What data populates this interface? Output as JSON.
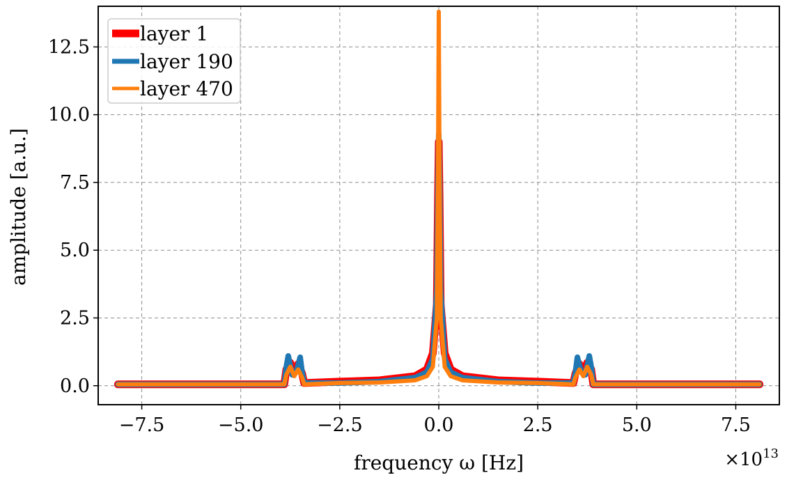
{
  "chart_data": {
    "type": "line",
    "title": "",
    "xlabel": "frequency ω [Hz]",
    "ylabel": "amplitude [a.u.]",
    "x_offset_label": "×10",
    "x_offset_exponent": "13",
    "xlim": [
      -8.6,
      8.6
    ],
    "ylim": [
      -0.7,
      14.0
    ],
    "x_scale_note": "x values in units of 1e13 Hz",
    "xticks": [
      -7.5,
      -5.0,
      -2.5,
      0.0,
      2.5,
      5.0,
      7.5
    ],
    "xtick_labels": [
      "−7.5",
      "−5.0",
      "−2.5",
      "0.0",
      "2.5",
      "5.0",
      "7.5"
    ],
    "yticks": [
      0.0,
      2.5,
      5.0,
      7.5,
      10.0,
      12.5
    ],
    "ytick_labels": [
      "0.0",
      "2.5",
      "5.0",
      "7.5",
      "10.0",
      "12.5"
    ],
    "grid": true,
    "legend_position": "top-left",
    "series": [
      {
        "name": "layer 1",
        "color": "#ff0000",
        "x": [
          -8.1,
          -3.9,
          -3.85,
          -3.75,
          -3.65,
          -3.55,
          -3.45,
          -3.4,
          -2.5,
          -1.5,
          -0.6,
          -0.3,
          -0.15,
          -0.05,
          -0.02,
          0.0,
          0.02,
          0.05,
          0.15,
          0.3,
          0.6,
          1.5,
          2.5,
          3.4,
          3.45,
          3.55,
          3.65,
          3.75,
          3.85,
          3.9,
          8.1
        ],
        "y": [
          0.05,
          0.05,
          0.6,
          0.85,
          0.5,
          0.8,
          0.45,
          0.1,
          0.15,
          0.2,
          0.35,
          0.6,
          1.2,
          3.0,
          7.0,
          9.0,
          7.0,
          3.0,
          1.2,
          0.6,
          0.35,
          0.2,
          0.15,
          0.1,
          0.45,
          0.8,
          0.5,
          0.85,
          0.6,
          0.05,
          0.05
        ]
      },
      {
        "name": "layer 190",
        "color": "#1f77b4",
        "x": [
          -8.1,
          -3.9,
          -3.85,
          -3.8,
          -3.7,
          -3.6,
          -3.5,
          -3.45,
          -3.4,
          -2.5,
          -1.5,
          -0.6,
          -0.3,
          -0.15,
          -0.05,
          -0.02,
          0.0,
          0.02,
          0.05,
          0.15,
          0.3,
          0.6,
          1.5,
          2.5,
          3.4,
          3.45,
          3.5,
          3.6,
          3.7,
          3.8,
          3.85,
          3.9,
          8.1
        ],
        "y": [
          0.05,
          0.05,
          0.7,
          1.1,
          0.4,
          0.5,
          1.05,
          0.5,
          0.1,
          0.1,
          0.15,
          0.3,
          0.5,
          1.0,
          3.5,
          7.5,
          9.3,
          7.5,
          3.5,
          1.0,
          0.5,
          0.3,
          0.15,
          0.1,
          0.1,
          0.5,
          1.05,
          0.5,
          0.4,
          1.1,
          0.7,
          0.05,
          0.05
        ]
      },
      {
        "name": "layer 470",
        "color": "#ff7f0e",
        "x": [
          -8.1,
          -3.9,
          -3.85,
          -3.75,
          -3.65,
          -3.55,
          -3.45,
          -3.4,
          -2.5,
          -1.5,
          -0.6,
          -0.3,
          -0.15,
          -0.05,
          -0.02,
          0.0,
          0.02,
          0.05,
          0.15,
          0.3,
          0.6,
          1.5,
          2.5,
          3.4,
          3.45,
          3.55,
          3.65,
          3.75,
          3.85,
          3.9,
          8.1
        ],
        "y": [
          0.05,
          0.05,
          0.4,
          0.7,
          0.35,
          0.6,
          0.3,
          0.05,
          0.1,
          0.12,
          0.2,
          0.35,
          0.7,
          2.5,
          8.0,
          13.8,
          8.0,
          2.5,
          0.7,
          0.35,
          0.2,
          0.12,
          0.1,
          0.05,
          0.3,
          0.6,
          0.35,
          0.7,
          0.4,
          0.05,
          0.05
        ]
      }
    ]
  }
}
